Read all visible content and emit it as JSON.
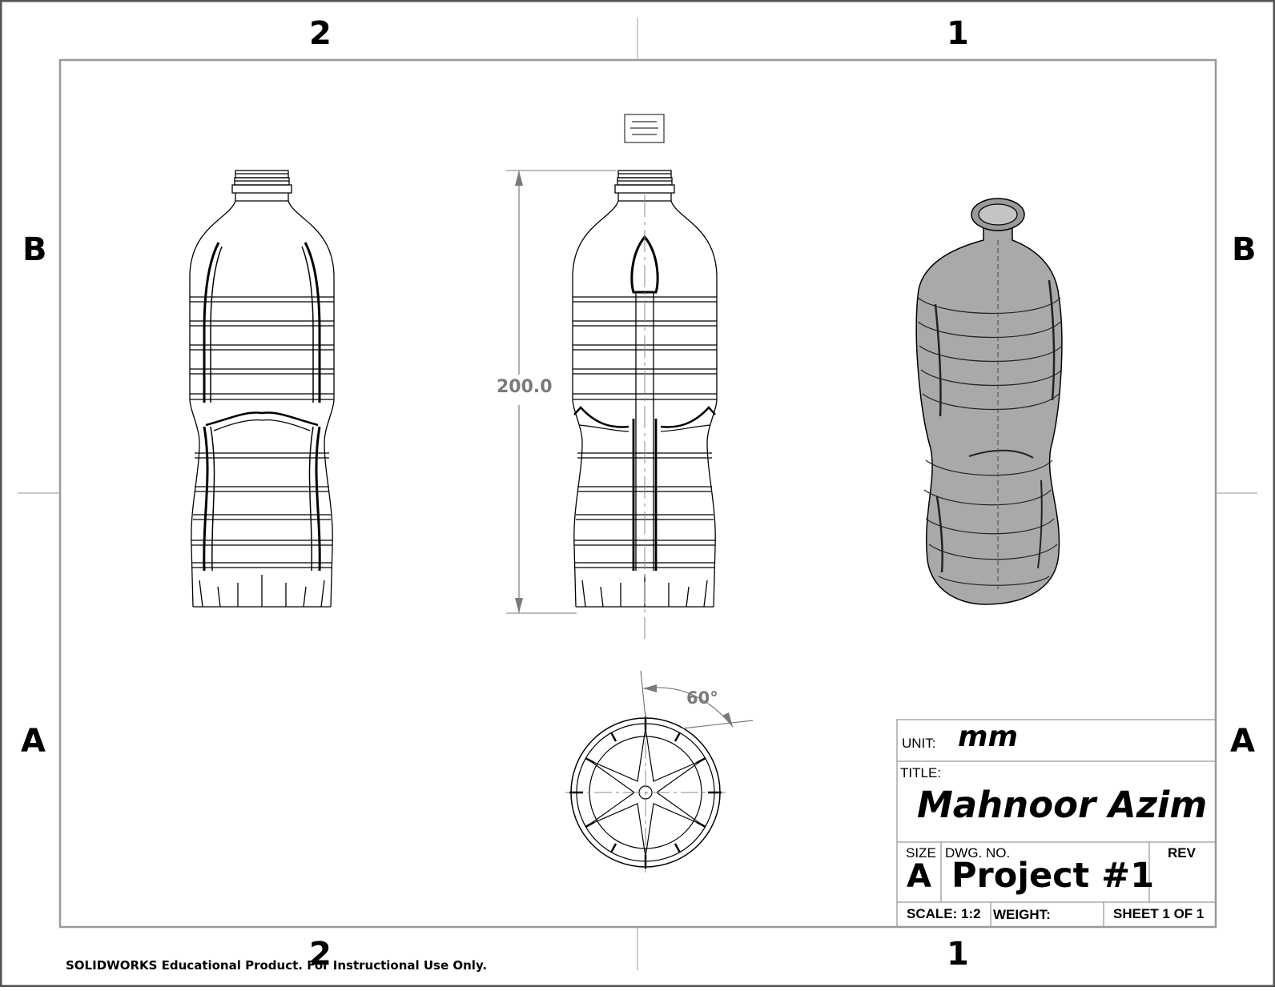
{
  "zones": {
    "top_left": "2",
    "top_right": "1",
    "bottom_left": "2",
    "bottom_right": "1",
    "left_upper": "B",
    "left_lower": "A",
    "right_upper": "B",
    "right_lower": "A"
  },
  "dimensions": {
    "height": "200.0",
    "angle": "60°"
  },
  "title_block": {
    "unit_label": "UNIT:",
    "unit_value": "mm",
    "title_label": "TITLE:",
    "title_value": "Mahnoor Azim",
    "size_label": "SIZE",
    "size_value": "A",
    "dwg_label": "DWG.  NO.",
    "dwg_value": "Project #1",
    "rev_label": "REV",
    "scale": "SCALE: 1:2",
    "weight": "WEIGHT:",
    "sheet": "SHEET 1 OF 1"
  },
  "footer": "SOLIDWORKS Educational Product. For Instructional Use Only.",
  "colors": {
    "line": "#000000",
    "dimension": "#7a7a7a",
    "shaded_body": "#8c8c8c",
    "outer_frame": "#555555"
  }
}
